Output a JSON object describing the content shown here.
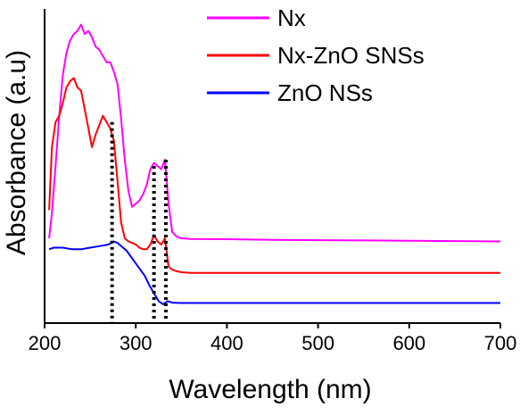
{
  "chart_data": {
    "type": "line",
    "title": "",
    "xlabel": "Wavelength (nm)",
    "ylabel": "Absorbance (a.u)",
    "xlim": [
      200,
      700
    ],
    "x_ticks": [
      "200",
      "300",
      "400",
      "500",
      "600",
      "700"
    ],
    "ylim": [
      0,
      1
    ],
    "y_ticks_labeled": false,
    "grid": false,
    "legend_position": "top-right",
    "series": [
      {
        "name": "Nx",
        "color": "#ff00ff",
        "x": [
          205,
          208,
          212,
          216,
          220,
          224,
          228,
          232,
          236,
          240,
          244,
          248,
          252,
          256,
          260,
          264,
          268,
          272,
          276,
          280,
          284,
          288,
          292,
          296,
          300,
          304,
          308,
          312,
          316,
          320,
          324,
          328,
          332,
          336,
          340,
          345,
          350,
          360,
          400,
          450,
          500,
          550,
          600,
          650,
          700
        ],
        "y": [
          0.27,
          0.35,
          0.5,
          0.66,
          0.79,
          0.86,
          0.9,
          0.92,
          0.93,
          0.95,
          0.92,
          0.93,
          0.91,
          0.88,
          0.87,
          0.85,
          0.83,
          0.83,
          0.8,
          0.76,
          0.65,
          0.52,
          0.42,
          0.37,
          0.38,
          0.39,
          0.41,
          0.44,
          0.49,
          0.51,
          0.5,
          0.49,
          0.52,
          0.38,
          0.29,
          0.275,
          0.27,
          0.268,
          0.267,
          0.265,
          0.264,
          0.263,
          0.262,
          0.261,
          0.26
        ]
      },
      {
        "name": "Nx-ZnO SNSs",
        "color": "#ff0000",
        "x": [
          205,
          208,
          212,
          216,
          220,
          224,
          228,
          232,
          236,
          240,
          244,
          248,
          252,
          256,
          260,
          264,
          268,
          272,
          276,
          280,
          284,
          288,
          292,
          296,
          300,
          304,
          308,
          312,
          316,
          320,
          324,
          328,
          332,
          336,
          340,
          345,
          350,
          360,
          400,
          450,
          500,
          550,
          600,
          650,
          700
        ],
        "y": [
          0.36,
          0.56,
          0.64,
          0.66,
          0.7,
          0.75,
          0.77,
          0.78,
          0.75,
          0.74,
          0.68,
          0.62,
          0.56,
          0.6,
          0.63,
          0.66,
          0.64,
          0.62,
          0.58,
          0.45,
          0.32,
          0.27,
          0.26,
          0.255,
          0.25,
          0.24,
          0.235,
          0.235,
          0.25,
          0.28,
          0.26,
          0.25,
          0.27,
          0.18,
          0.17,
          0.165,
          0.162,
          0.16,
          0.16,
          0.16,
          0.16,
          0.16,
          0.16,
          0.16,
          0.16
        ]
      },
      {
        "name": "ZnO NSs",
        "color": "#0000ff",
        "x": [
          205,
          210,
          220,
          230,
          240,
          250,
          260,
          270,
          276,
          280,
          290,
          300,
          310,
          315,
          320,
          325,
          330,
          335,
          340,
          350,
          400,
          500,
          600,
          700
        ],
        "y": [
          0.235,
          0.24,
          0.24,
          0.235,
          0.235,
          0.24,
          0.245,
          0.25,
          0.26,
          0.255,
          0.23,
          0.19,
          0.15,
          0.12,
          0.095,
          0.07,
          0.06,
          0.07,
          0.065,
          0.064,
          0.064,
          0.064,
          0.064,
          0.064
        ]
      }
    ],
    "dotted_markers": [
      {
        "x": 274,
        "y_top": 0.64
      },
      {
        "x": 320,
        "y_top": 0.5
      },
      {
        "x": 333,
        "y_top": 0.52
      }
    ]
  }
}
